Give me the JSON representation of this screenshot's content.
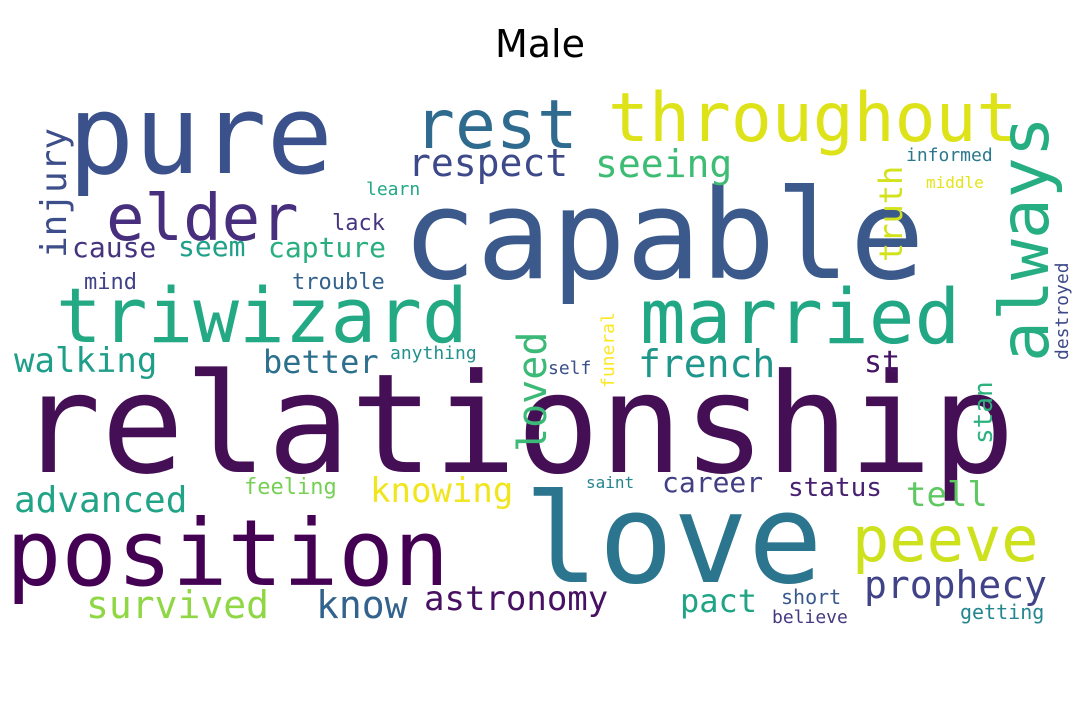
{
  "title": "Male",
  "words": [
    {
      "text": "relationship",
      "color": "#440f54"
    },
    {
      "text": "capable",
      "color": "#3b598b"
    },
    {
      "text": "love",
      "color": "#2b768e"
    },
    {
      "text": "pure",
      "color": "#3b518b"
    },
    {
      "text": "position",
      "color": "#440154"
    },
    {
      "text": "triwizard",
      "color": "#23a983"
    },
    {
      "text": "married",
      "color": "#22a785"
    },
    {
      "text": "throughout",
      "color": "#dde318"
    },
    {
      "text": "rest",
      "color": "#2f6b8e"
    },
    {
      "text": "elder",
      "color": "#472f7d"
    },
    {
      "text": "always",
      "color": "#26ad81"
    },
    {
      "text": "peeve",
      "color": "#cde11d"
    },
    {
      "text": "respect",
      "color": "#3e4989"
    },
    {
      "text": "seeing",
      "color": "#3dbc74"
    },
    {
      "text": "prophecy",
      "color": "#404387"
    },
    {
      "text": "french",
      "color": "#1f968b"
    },
    {
      "text": "walking",
      "color": "#1f9e89"
    },
    {
      "text": "advanced",
      "color": "#20a386"
    },
    {
      "text": "survived",
      "color": "#8fd744"
    },
    {
      "text": "know",
      "color": "#33638d"
    },
    {
      "text": "astronomy",
      "color": "#471063"
    },
    {
      "text": "knowing",
      "color": "#f1e51d"
    },
    {
      "text": "loved",
      "color": "#3aba76"
    },
    {
      "text": "injury",
      "color": "#3d4e8a"
    },
    {
      "text": "better",
      "color": "#2d708e"
    },
    {
      "text": "cause",
      "color": "#46337f"
    },
    {
      "text": "seem",
      "color": "#1fa088"
    },
    {
      "text": "capture",
      "color": "#29af7f"
    },
    {
      "text": "truth",
      "color": "#d2e21b"
    },
    {
      "text": "pact",
      "color": "#20a486"
    },
    {
      "text": "career",
      "color": "#423f85"
    },
    {
      "text": "status",
      "color": "#482071"
    },
    {
      "text": "tell",
      "color": "#5ec962"
    },
    {
      "text": "st",
      "color": "#471365"
    },
    {
      "text": "stan",
      "color": "#2db27d"
    },
    {
      "text": "lack",
      "color": "#453581"
    },
    {
      "text": "mind",
      "color": "#414287"
    },
    {
      "text": "trouble",
      "color": "#33638d"
    },
    {
      "text": "learn",
      "color": "#22a884"
    },
    {
      "text": "feeling",
      "color": "#75d054"
    },
    {
      "text": "anything",
      "color": "#21918c"
    },
    {
      "text": "self",
      "color": "#3c508b"
    },
    {
      "text": "funeral",
      "color": "#fde725"
    },
    {
      "text": "saint",
      "color": "#25858e"
    },
    {
      "text": "short",
      "color": "#38598c"
    },
    {
      "text": "believe",
      "color": "#443983"
    },
    {
      "text": "getting",
      "color": "#24868e"
    },
    {
      "text": "informed",
      "color": "#2a788e"
    },
    {
      "text": "middle",
      "color": "#e5e419"
    },
    {
      "text": "destroyed",
      "color": "#3e4a89"
    }
  ]
}
